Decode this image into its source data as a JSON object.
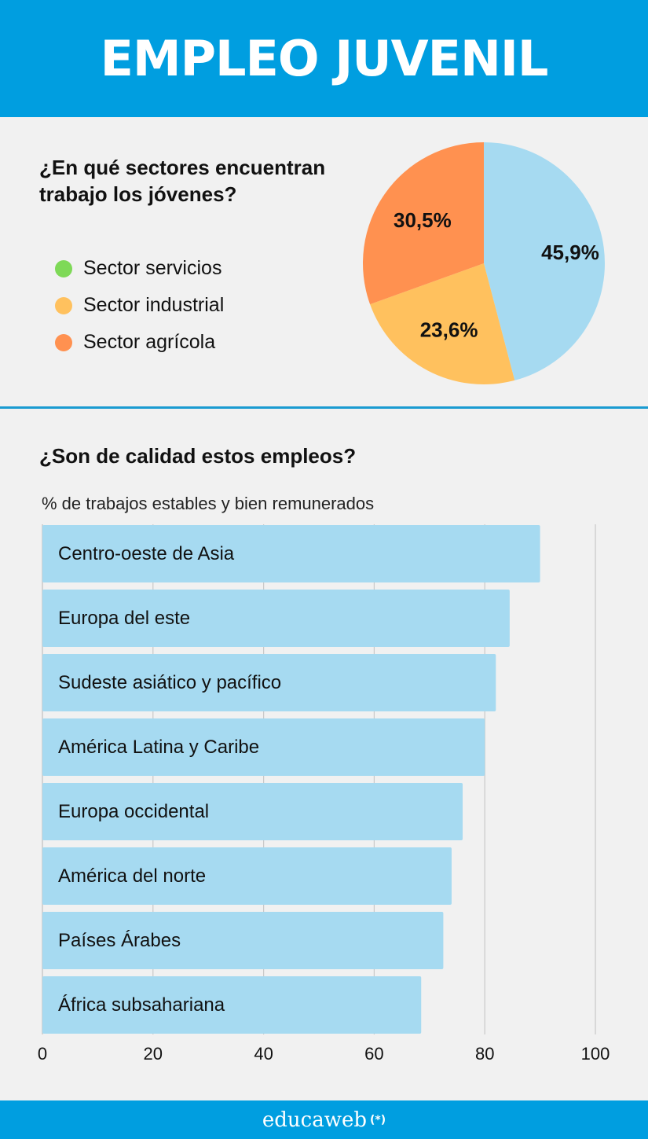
{
  "header": {
    "title": "EMPLEO JUVENIL"
  },
  "footer": {
    "brand": "educaweb",
    "mark": "(*)"
  },
  "chart_data": [
    {
      "type": "pie",
      "title": "¿En qué sectores encuentran trabajo los jóvenes?",
      "slices": [
        {
          "name": "Sector servicios",
          "value": 45.9,
          "label": "45,9%",
          "color": "#a6daf1"
        },
        {
          "name": "Sector industrial",
          "value": 23.6,
          "label": "23,6%",
          "color": "#ffc15e"
        },
        {
          "name": "Sector agrícola",
          "value": 30.5,
          "label": "30,5%",
          "color": "#ff9150"
        }
      ],
      "legend": [
        {
          "name": "Sector servicios",
          "color": "#7ed957"
        },
        {
          "name": "Sector industrial",
          "color": "#ffc15e"
        },
        {
          "name": "Sector agrícola",
          "color": "#ff9150"
        }
      ]
    },
    {
      "type": "bar",
      "orientation": "horizontal",
      "title": "¿Son de calidad estos empleos?",
      "subtitle": "% de trabajos estables y bien remunerados",
      "categories": [
        "Centro-oeste de Asia",
        "Europa del este",
        "Sudeste asiático y pacífico",
        "América Latina y Caribe",
        "Europa occidental",
        "América del norte",
        "Países Árabes",
        "África subsahariana"
      ],
      "values": [
        90,
        84.5,
        82,
        80,
        76,
        74,
        72.5,
        68.5
      ],
      "xlim": [
        0,
        100
      ],
      "xticks": [
        "0",
        "20",
        "40",
        "60",
        "80",
        "100"
      ],
      "bar_color": "#a6daf1",
      "grid": true
    }
  ]
}
